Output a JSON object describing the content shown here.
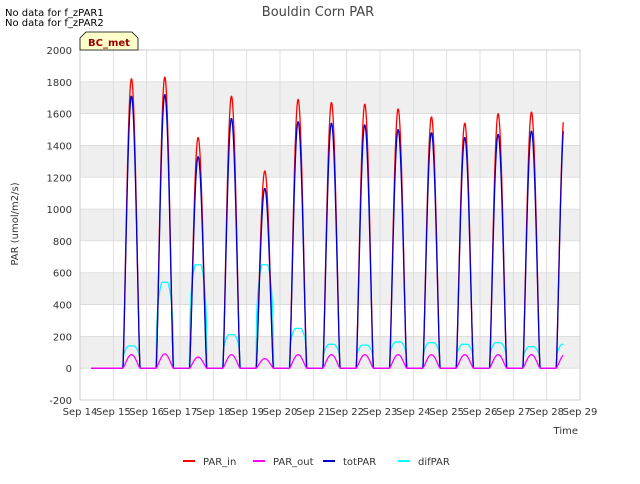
{
  "no_data_messages": [
    "No data for f_zPAR1",
    "No data for f_zPAR2"
  ],
  "colors": {
    "PAR_in": "#ff0000",
    "PAR_out": "#ff00ff",
    "totPAR": "#0000cc",
    "difPAR": "#00ffff",
    "band": "#efefef",
    "grid": "#d9d9d9",
    "badge_bg": "#ffffcc",
    "badge_text": "#990000"
  },
  "chart_data": {
    "type": "line",
    "title": "Bouldin Corn PAR",
    "xlabel": "Time",
    "ylabel": "PAR (umol/m2/s)",
    "badge": "BC_met",
    "ylim": [
      -200,
      2000
    ],
    "yticks": [
      -200,
      0,
      200,
      400,
      600,
      800,
      1000,
      1200,
      1400,
      1600,
      1800,
      2000
    ],
    "xlim": [
      14,
      29
    ],
    "xticks": [
      14,
      15,
      16,
      17,
      18,
      19,
      20,
      21,
      22,
      23,
      24,
      25,
      26,
      27,
      28,
      29
    ],
    "xtick_labels": [
      "Sep 14",
      "Sep 15",
      "Sep 16",
      "Sep 17",
      "Sep 18",
      "Sep 19",
      "Sep 20",
      "Sep 21",
      "Sep 22",
      "Sep 23",
      "Sep 24",
      "Sep 25",
      "Sep 26",
      "Sep 27",
      "Sep 28",
      "Sep 29"
    ],
    "x_range_data": [
      14.33,
      28.5
    ],
    "daylight_hours": [
      6.9,
      19.2
    ],
    "days": [
      {
        "day": 15,
        "PAR_in_peak": 1820,
        "totPAR_peak": 1710,
        "difPAR_level": 140,
        "PAR_out_peak": 85
      },
      {
        "day": 16,
        "PAR_in_peak": 1830,
        "totPAR_peak": 1720,
        "difPAR_level": 540,
        "PAR_out_peak": 90
      },
      {
        "day": 17,
        "PAR_in_peak": 1450,
        "totPAR_peak": 1330,
        "difPAR_level": 650,
        "PAR_out_peak": 70
      },
      {
        "day": 18,
        "PAR_in_peak": 1710,
        "totPAR_peak": 1570,
        "difPAR_level": 210,
        "PAR_out_peak": 85
      },
      {
        "day": 19,
        "PAR_in_peak": 1240,
        "totPAR_peak": 1130,
        "difPAR_level": 650,
        "PAR_out_peak": 60
      },
      {
        "day": 20,
        "PAR_in_peak": 1690,
        "totPAR_peak": 1550,
        "difPAR_level": 250,
        "PAR_out_peak": 85
      },
      {
        "day": 21,
        "PAR_in_peak": 1670,
        "totPAR_peak": 1540,
        "difPAR_level": 150,
        "PAR_out_peak": 85
      },
      {
        "day": 22,
        "PAR_in_peak": 1660,
        "totPAR_peak": 1530,
        "difPAR_level": 145,
        "PAR_out_peak": 85
      },
      {
        "day": 23,
        "PAR_in_peak": 1630,
        "totPAR_peak": 1500,
        "difPAR_level": 165,
        "PAR_out_peak": 85
      },
      {
        "day": 24,
        "PAR_in_peak": 1580,
        "totPAR_peak": 1480,
        "difPAR_level": 160,
        "PAR_out_peak": 85
      },
      {
        "day": 25,
        "PAR_in_peak": 1540,
        "totPAR_peak": 1450,
        "difPAR_level": 150,
        "PAR_out_peak": 85
      },
      {
        "day": 26,
        "PAR_in_peak": 1600,
        "totPAR_peak": 1470,
        "difPAR_level": 160,
        "PAR_out_peak": 85
      },
      {
        "day": 27,
        "PAR_in_peak": 1610,
        "totPAR_peak": 1490,
        "difPAR_level": 135,
        "PAR_out_peak": 85
      },
      {
        "day": 28,
        "PAR_in_peak": 1630,
        "totPAR_peak": 1570,
        "difPAR_level": 150,
        "PAR_out_peak": 85
      }
    ],
    "series": [
      {
        "name": "PAR_in",
        "key": "PAR_in_peak"
      },
      {
        "name": "PAR_out",
        "key": "PAR_out_peak"
      },
      {
        "name": "totPAR",
        "key": "totPAR_peak"
      },
      {
        "name": "difPAR",
        "key": "difPAR_level"
      }
    ],
    "legend_position": "bottom-center",
    "grid": true
  }
}
